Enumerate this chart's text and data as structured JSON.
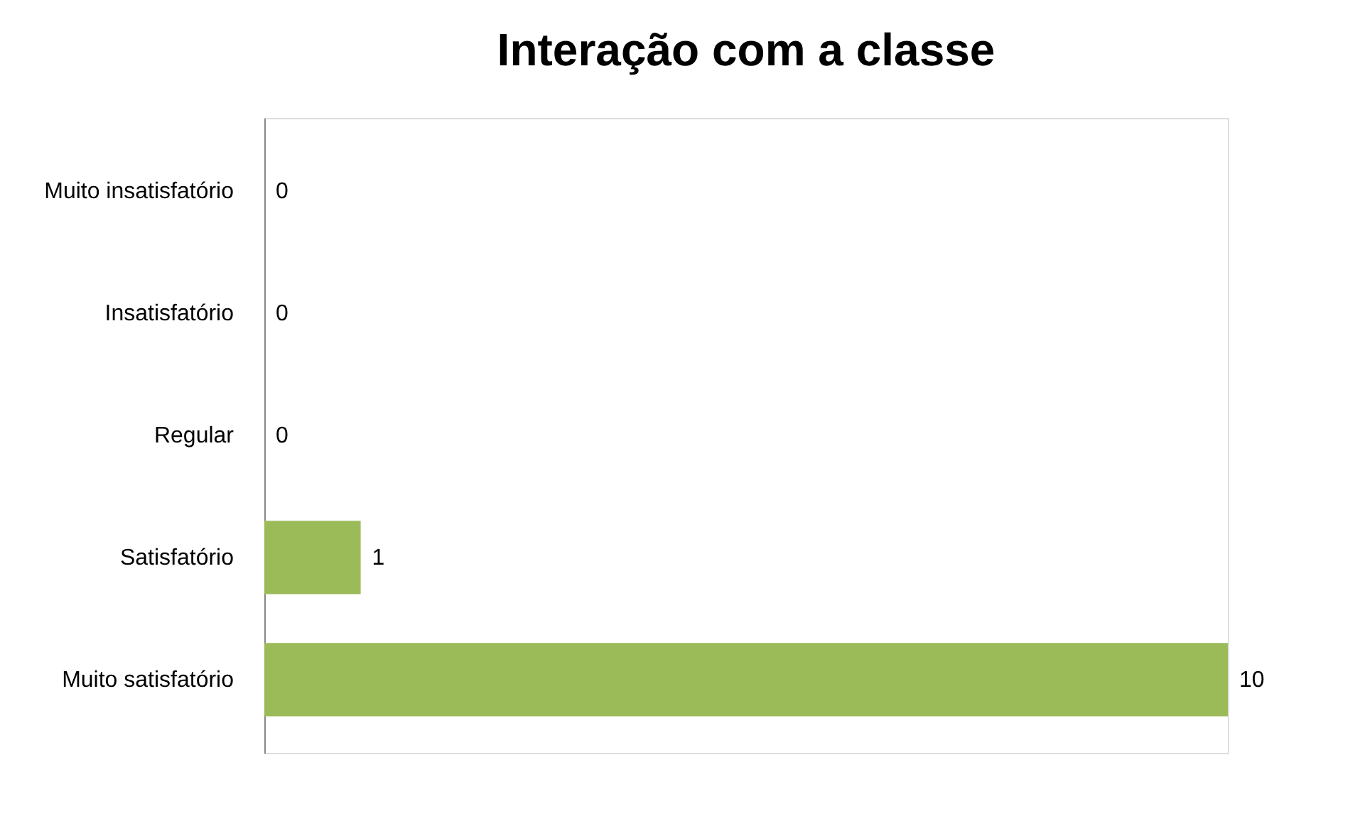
{
  "chart_data": {
    "type": "bar",
    "orientation": "horizontal",
    "title": "Interação com a classe",
    "categories": [
      "Muito insatisfatório",
      "Insatisfatório",
      "Regular",
      "Satisfatório",
      "Muito satisfatório"
    ],
    "values": [
      0,
      0,
      0,
      1,
      10
    ],
    "color": "#9bbb59",
    "xlim": [
      0,
      10
    ],
    "data_labels": true,
    "tick_labels": "y",
    "grid": false
  }
}
